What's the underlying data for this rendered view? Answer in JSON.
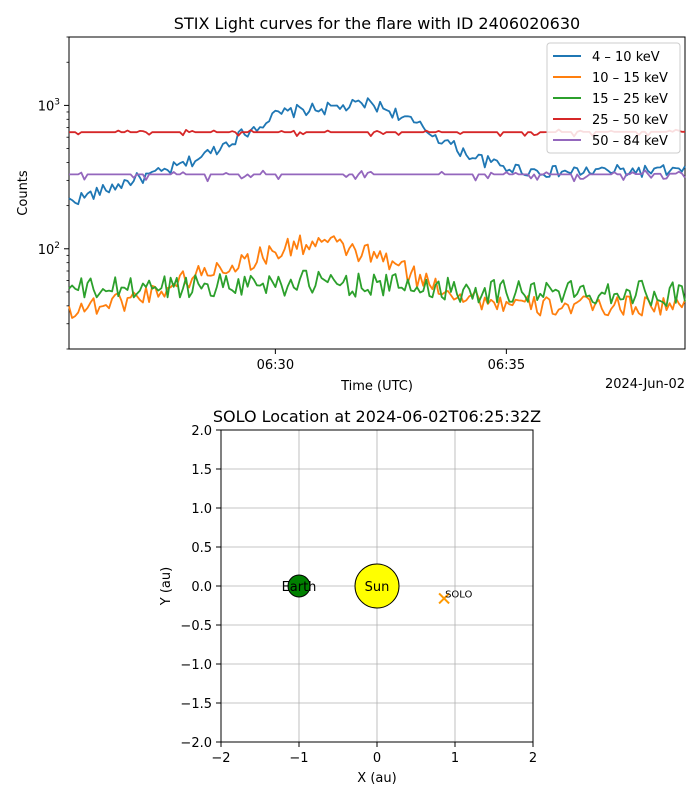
{
  "chart_data": [
    {
      "type": "line",
      "title": "STIX Light curves for the flare with ID 2406020630",
      "xlabel": "Time (UTC)",
      "ylabel": "Counts",
      "x_date_label": "2024-Jun-02",
      "x_range": [
        "06:25:32",
        "06:38:52"
      ],
      "x_ticks": [
        "06:30",
        "06:35"
      ],
      "y_scale": "log",
      "y_range": [
        20,
        3000
      ],
      "y_ticks": [
        {
          "value": 100,
          "base": "10",
          "exp": "2"
        },
        {
          "value": 1000,
          "base": "10",
          "exp": "3"
        }
      ],
      "legend_position": "top-right",
      "grid": false,
      "series": [
        {
          "name": "4 – 10 keV",
          "color": "#1f77b4",
          "points": [
            [
              0,
              215
            ],
            [
              40,
              250
            ],
            [
              80,
              300
            ],
            [
              120,
              340
            ],
            [
              150,
              390
            ],
            [
              180,
              460
            ],
            [
              210,
              570
            ],
            [
              240,
              700
            ],
            [
              270,
              860
            ],
            [
              300,
              930
            ],
            [
              330,
              950
            ],
            [
              360,
              980
            ],
            [
              390,
              1040
            ],
            [
              420,
              910
            ],
            [
              450,
              740
            ],
            [
              480,
              600
            ],
            [
              510,
              480
            ],
            [
              540,
              410
            ],
            [
              570,
              370
            ],
            [
              600,
              350
            ],
            [
              630,
              345
            ],
            [
              660,
              345
            ],
            [
              690,
              350
            ],
            [
              720,
              350
            ],
            [
              760,
              350
            ],
            [
              800,
              350
            ]
          ]
        },
        {
          "name": "10 – 15 keV",
          "color": "#ff7f0e",
          "points": [
            [
              0,
              38
            ],
            [
              40,
              41
            ],
            [
              80,
              45
            ],
            [
              120,
              52
            ],
            [
              150,
              62
            ],
            [
              180,
              70
            ],
            [
              210,
              78
            ],
            [
              240,
              86
            ],
            [
              270,
              96
            ],
            [
              300,
              108
            ],
            [
              330,
              112
            ],
            [
              360,
              100
            ],
            [
              390,
              92
            ],
            [
              420,
              80
            ],
            [
              450,
              64
            ],
            [
              480,
              55
            ],
            [
              510,
              48
            ],
            [
              540,
              44
            ],
            [
              570,
              41
            ],
            [
              600,
              40
            ],
            [
              630,
              40
            ],
            [
              660,
              40
            ],
            [
              700,
              40
            ],
            [
              740,
              41
            ],
            [
              800,
              40
            ]
          ]
        },
        {
          "name": "15 – 25 keV",
          "color": "#2ca02c",
          "points": [
            [
              0,
              52
            ],
            [
              60,
              53
            ],
            [
              120,
              55
            ],
            [
              180,
              57
            ],
            [
              240,
              58
            ],
            [
              300,
              59
            ],
            [
              360,
              58
            ],
            [
              420,
              56
            ],
            [
              480,
              54
            ],
            [
              540,
              52
            ],
            [
              600,
              51
            ],
            [
              660,
              50
            ],
            [
              720,
              51
            ],
            [
              800,
              49
            ]
          ]
        },
        {
          "name": "25 – 50 keV",
          "color": "#d62728",
          "points": [
            [
              0,
              650
            ],
            [
              100,
              650
            ],
            [
              200,
              650
            ],
            [
              300,
              650
            ],
            [
              400,
              650
            ],
            [
              500,
              650
            ],
            [
              600,
              650
            ],
            [
              700,
              655
            ],
            [
              800,
              655
            ]
          ]
        },
        {
          "name": "50 – 84 keV",
          "color": "#9467bd",
          "points": [
            [
              0,
              330
            ],
            [
              100,
              330
            ],
            [
              200,
              330
            ],
            [
              300,
              330
            ],
            [
              400,
              330
            ],
            [
              500,
              330
            ],
            [
              600,
              330
            ],
            [
              700,
              330
            ],
            [
              800,
              335
            ]
          ]
        }
      ]
    },
    {
      "type": "scatter",
      "title": "SOLO Location at 2024-06-02T06:25:32Z",
      "xlabel": "X (au)",
      "ylabel": "Y (au)",
      "xlim": [
        -2,
        2
      ],
      "ylim": [
        -2,
        2
      ],
      "x_ticks": [
        "−2",
        "−1",
        "0",
        "1",
        "2"
      ],
      "y_ticks": [
        "2.0",
        "1.5",
        "1.0",
        "0.5",
        "0.0",
        "−0.5",
        "−1.0",
        "−1.5",
        "−2.0"
      ],
      "grid": true,
      "points": [
        {
          "label": "Sun",
          "x": 0,
          "y": 0,
          "color": "#ffff00"
        },
        {
          "label": "Earth",
          "x": -1,
          "y": 0,
          "color": "#008000"
        },
        {
          "label": "SOLO",
          "x": 0.86,
          "y": -0.16,
          "color": "#ff9900"
        }
      ]
    }
  ]
}
